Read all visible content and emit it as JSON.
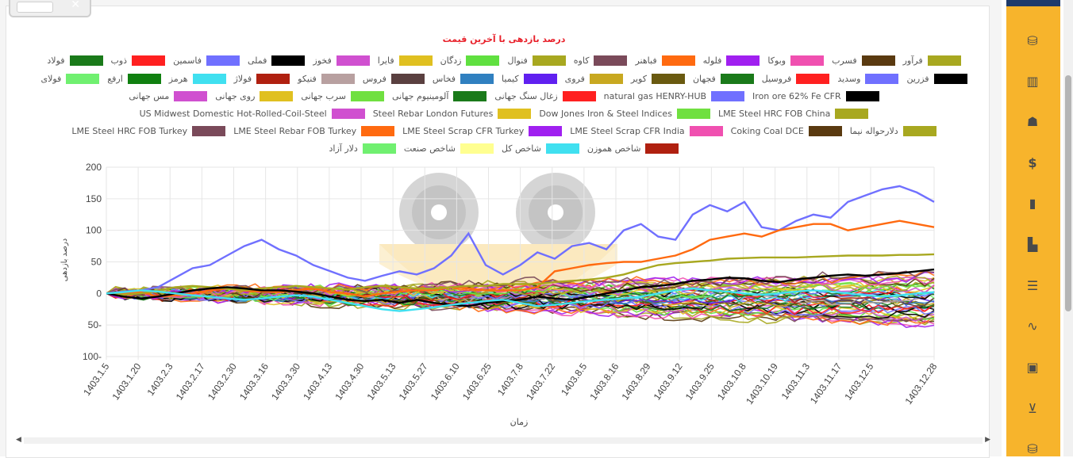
{
  "page": {
    "title": "درصد بازدهی با آخرین قیمت"
  },
  "legend_rows": [
    [
      {
        "label": "فرآور",
        "color": "#a8a820"
      },
      {
        "label": "فسرب",
        "color": "#5a3a10"
      },
      {
        "label": "وبوکا",
        "color": "#f050b0"
      },
      {
        "label": "فلوله",
        "color": "#a020f0"
      },
      {
        "label": "فباهنر",
        "color": "#ff6a10"
      },
      {
        "label": "کاوه",
        "color": "#7a4a5a"
      },
      {
        "label": "فنوال",
        "color": "#a8a820"
      },
      {
        "label": "زدگان",
        "color": "#60e040"
      },
      {
        "label": "فایرا",
        "color": "#e0c020"
      },
      {
        "label": "فخوز",
        "color": "#d050d0"
      },
      {
        "label": "فملی",
        "color": "#000000"
      },
      {
        "label": "فاسمین",
        "color": "#7070ff"
      },
      {
        "label": "ذوب",
        "color": "#ff2020"
      },
      {
        "label": "فولاد",
        "color": "#1a7a1a"
      }
    ],
    [
      {
        "label": "فزرین",
        "color": "#000000"
      },
      {
        "label": "وسدید",
        "color": "#7070ff"
      },
      {
        "label": "فروسیل",
        "color": "#ff2020"
      },
      {
        "label": "فجهان",
        "color": "#1a7a1a"
      },
      {
        "label": "کویر",
        "color": "#6a5a10"
      },
      {
        "label": "فروی",
        "color": "#c8a820"
      },
      {
        "label": "کیمیا",
        "color": "#6020f0"
      },
      {
        "label": "فخاس",
        "color": "#3080c0"
      },
      {
        "label": "فروس",
        "color": "#5a4040"
      },
      {
        "label": "فنیکو",
        "color": "#b8a0a0"
      },
      {
        "label": "فولاژ",
        "color": "#b02010"
      },
      {
        "label": "هرمز",
        "color": "#40e0f0"
      },
      {
        "label": "ارفع",
        "color": "#108010"
      },
      {
        "label": "فولای",
        "color": "#70f070"
      }
    ],
    [
      {
        "label": "Iron ore 62% Fe CFR",
        "color": "#000000"
      },
      {
        "label": "natural gas HENRY-HUB",
        "color": "#7070ff"
      },
      {
        "label": "زغال سنگ جهانی",
        "color": "#ff2020"
      },
      {
        "label": "آلومینیوم جهانی",
        "color": "#1a7a1a"
      },
      {
        "label": "سرب جهانی",
        "color": "#70e040"
      },
      {
        "label": "روی جهانی",
        "color": "#e0c020"
      },
      {
        "label": "مس جهانی",
        "color": "#d050d0"
      }
    ],
    [
      {
        "label": "LME Steel HRC FOB China",
        "color": "#a8a820"
      },
      {
        "label": "Dow Jones Iron & Steel Indices",
        "color": "#70e040"
      },
      {
        "label": "Steel Rebar London Futures",
        "color": "#e0c020"
      },
      {
        "label": "US Midwest Domestic Hot-Rolled-Coil-Steel",
        "color": "#d050d0"
      }
    ],
    [
      {
        "label": "دلارحواله نیما",
        "color": "#a8a820"
      },
      {
        "label": "Coking Coal DCE",
        "color": "#5a3a10"
      },
      {
        "label": "LME Steel Scrap CFR India",
        "color": "#f050b0"
      },
      {
        "label": "LME Steel Scrap CFR Turkey",
        "color": "#a020f0"
      },
      {
        "label": "LME Steel Rebar FOB Turkey",
        "color": "#ff6a10"
      },
      {
        "label": "LME Steel HRC FOB Turkey",
        "color": "#7a4a5a"
      }
    ],
    [
      {
        "label": "شاخص هموزن",
        "color": "#b02010"
      },
      {
        "label": "شاخص کل",
        "color": "#40e0f0"
      },
      {
        "label": "شاخص صنعت",
        "color": "#ffff90"
      },
      {
        "label": "دلار آزاد",
        "color": "#70f070"
      }
    ]
  ],
  "chart_data": {
    "type": "line",
    "title": "درصد بازدهی با آخرین قیمت",
    "xlabel": "زمان",
    "ylabel": "درصد بازدهی",
    "ylim": [
      -100,
      200
    ],
    "yticks": [
      200,
      150,
      100,
      50,
      0,
      -50,
      -100
    ],
    "ytick_labels": [
      "200",
      "150",
      "100",
      "50",
      "0",
      "50-",
      "100-"
    ],
    "x_tick_labels": [
      "1403.1.5",
      "1403.1.20",
      "1403.2.3",
      "1403.2.17",
      "1403.2.30",
      "1403.3.16",
      "1403.3.30",
      "1403.4.13",
      "1403.4.30",
      "1403.5.13",
      "1403.5.27",
      "1403.6.10",
      "1403.6.25",
      "1403.7.8",
      "1403.7.22",
      "1403.8.5",
      "1403.8.16",
      "1403.8.29",
      "1403.9.12",
      "1403.9.25",
      "1403.10.8",
      "1403.10.19",
      "1403.11.3",
      "1403.11.17",
      "1403.12.5",
      "1403.12.28"
    ],
    "grid": true,
    "legend_position": "top",
    "highlighted_series": [
      {
        "name": "natural gas HENRY-HUB",
        "color": "#7070ff",
        "values": [
          0,
          3,
          5,
          10,
          25,
          40,
          45,
          60,
          75,
          85,
          70,
          60,
          45,
          35,
          25,
          20,
          28,
          35,
          30,
          40,
          60,
          95,
          45,
          30,
          45,
          65,
          55,
          75,
          80,
          70,
          100,
          110,
          90,
          85,
          125,
          140,
          130,
          145,
          105,
          100,
          115,
          125,
          120,
          145,
          155,
          165,
          170,
          160,
          145
        ]
      },
      {
        "name": "LME Steel Rebar FOB Turkey",
        "color": "#ff6a10",
        "values": [
          0,
          0,
          2,
          -5,
          -3,
          0,
          5,
          8,
          4,
          3,
          2,
          5,
          8,
          2,
          0,
          -5,
          0,
          3,
          5,
          5,
          10,
          8,
          5,
          5,
          5,
          10,
          35,
          40,
          45,
          48,
          50,
          50,
          55,
          60,
          70,
          85,
          90,
          95,
          90,
          100,
          105,
          110,
          110,
          100,
          105,
          110,
          115,
          110,
          105
        ]
      },
      {
        "name": "LME Steel HRC FOB China",
        "color": "#a8a820",
        "values": [
          0,
          -2,
          0,
          5,
          10,
          12,
          10,
          8,
          5,
          8,
          10,
          12,
          10,
          8,
          6,
          10,
          12,
          10,
          8,
          8,
          10,
          12,
          12,
          15,
          15,
          15,
          18,
          20,
          22,
          25,
          30,
          38,
          45,
          48,
          50,
          52,
          55,
          56,
          57,
          57,
          57,
          58,
          59,
          60,
          60,
          60,
          61,
          61,
          62
        ]
      },
      {
        "name": "Iron ore 62% Fe CFR",
        "color": "#000000",
        "values": [
          0,
          -5,
          -8,
          -5,
          0,
          5,
          8,
          10,
          8,
          5,
          5,
          3,
          0,
          -5,
          -10,
          -12,
          -10,
          -15,
          -10,
          -15,
          -18,
          -20,
          -15,
          -12,
          -10,
          -5,
          -8,
          -10,
          -5,
          0,
          5,
          10,
          12,
          15,
          20,
          22,
          25,
          24,
          20,
          18,
          22,
          25,
          28,
          30,
          28,
          30,
          32,
          35,
          38
        ]
      },
      {
        "name": "شاخص کل",
        "color": "#40e0f0",
        "values": [
          0,
          2,
          5,
          3,
          0,
          -3,
          -5,
          -8,
          -10,
          -8,
          -5,
          -3,
          -5,
          -10,
          -15,
          -20,
          -25,
          -28,
          -25,
          -22,
          -18,
          -15,
          -12,
          -10,
          -15,
          -20,
          -18,
          -15,
          -12,
          -10,
          -8,
          -5,
          0,
          5,
          8,
          5,
          3,
          0,
          -2,
          0,
          3,
          5,
          3,
          0,
          -3,
          -5,
          -3,
          0,
          2
        ]
      }
    ],
    "other_series_count": 45,
    "other_series_range": [
      -50,
      30
    ]
  },
  "watermark": "logo",
  "sidebar_icons": [
    "database-gear-icon",
    "map-icon",
    "user-card-icon",
    "dollar-icon",
    "book-icon",
    "bar-chart-icon",
    "sliders-icon",
    "pulse-icon",
    "briefcase-icon",
    "cart-icon",
    "database-icon"
  ]
}
